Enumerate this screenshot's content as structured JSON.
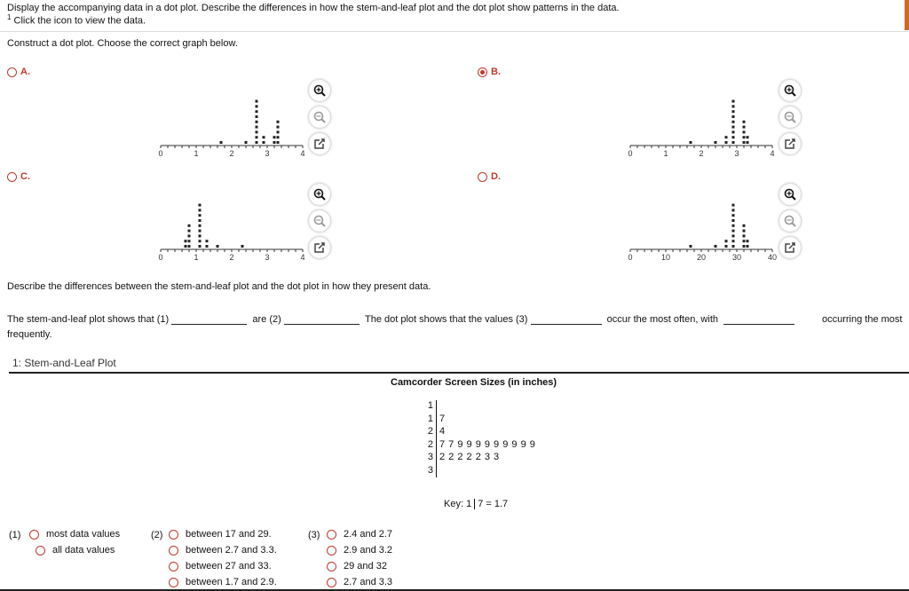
{
  "header": {
    "question": "Display the accompanying data in a dot plot. Describe the differences in how the stem-and-leaf plot and the dot plot show patterns in the data.",
    "footnote_mark": "1",
    "footnote": "Click the icon to view the data.",
    "accent": "#c0392b",
    "flag_color": "#d2691e"
  },
  "part1": {
    "prompt": "Construct a dot plot. Choose the correct graph below.",
    "selected": "B"
  },
  "chart_data": [
    {
      "option": "A.",
      "type": "scatter",
      "subtype": "dot plot",
      "xlim": [
        0,
        4
      ],
      "ticks": [
        "0",
        "1",
        "2",
        "3",
        "4"
      ],
      "minor_step": 0.2,
      "points": [
        [
          1.7,
          1
        ],
        [
          2.4,
          1
        ],
        [
          2.7,
          9
        ],
        [
          2.9,
          2
        ],
        [
          3.2,
          2
        ],
        [
          3.3,
          5
        ]
      ]
    },
    {
      "option": "B.",
      "type": "scatter",
      "subtype": "dot plot",
      "xlim": [
        0,
        4
      ],
      "ticks": [
        "0",
        "1",
        "2",
        "3",
        "4"
      ],
      "minor_step": 0.2,
      "points": [
        [
          1.7,
          1
        ],
        [
          2.4,
          1
        ],
        [
          2.7,
          2
        ],
        [
          2.9,
          9
        ],
        [
          3.2,
          5
        ],
        [
          3.3,
          2
        ]
      ]
    },
    {
      "option": "C.",
      "type": "scatter",
      "subtype": "dot plot",
      "xlim": [
        0,
        4
      ],
      "ticks": [
        "0",
        "1",
        "2",
        "3",
        "4"
      ],
      "minor_step": 0.2,
      "points": [
        [
          0.7,
          2
        ],
        [
          0.8,
          5
        ],
        [
          1.1,
          9
        ],
        [
          1.3,
          2
        ],
        [
          1.6,
          1
        ],
        [
          2.3,
          1
        ]
      ]
    },
    {
      "option": "D.",
      "type": "scatter",
      "subtype": "dot plot",
      "xlim": [
        0,
        40
      ],
      "ticks": [
        "0",
        "10",
        "20",
        "30",
        "40"
      ],
      "minor_step": 2,
      "points": [
        [
          17,
          1
        ],
        [
          24,
          1
        ],
        [
          27,
          2
        ],
        [
          29,
          9
        ],
        [
          32,
          5
        ],
        [
          33,
          2
        ]
      ]
    }
  ],
  "part2": {
    "prompt": "Describe the differences between the stem-and-leaf plot and the dot plot in how they present data.",
    "s1": "The stem-and-leaf plot shows that",
    "b1": "(1)",
    "s2": "are",
    "b2": "(2)",
    "s3": "The dot plot shows that the values",
    "b3": "(3)",
    "s4": "occur the most often, with",
    "s5": "occurring the most",
    "s6": "frequently."
  },
  "popup": {
    "title": "1: Stem-and-Leaf Plot",
    "table_title": "Camcorder Screen Sizes (in inches)",
    "rows": [
      {
        "stem": "1",
        "leaves": ""
      },
      {
        "stem": "1",
        "leaves": "7"
      },
      {
        "stem": "2",
        "leaves": "4"
      },
      {
        "stem": "2",
        "leaves": "7 7 9 9 9 9 9 9 9 9 9"
      },
      {
        "stem": "3",
        "leaves": "2 2 2 2 2 3 3"
      },
      {
        "stem": "3",
        "leaves": ""
      }
    ],
    "key_prefix": "Key: 1",
    "key_suffix": "7 = 1.7"
  },
  "choices": {
    "g1": {
      "label": "(1)",
      "options": [
        "most data values",
        "all data values"
      ]
    },
    "g2": {
      "label": "(2)",
      "options": [
        "between 17 and 29.",
        "between 2.7 and 3.3.",
        "between 27 and 33.",
        "between 1.7 and 2.9."
      ]
    },
    "g3": {
      "label": "(3)",
      "options": [
        "2.4 and 2.7",
        "2.9 and 3.2",
        "29 and 32",
        "2.7 and 3.3"
      ]
    }
  }
}
